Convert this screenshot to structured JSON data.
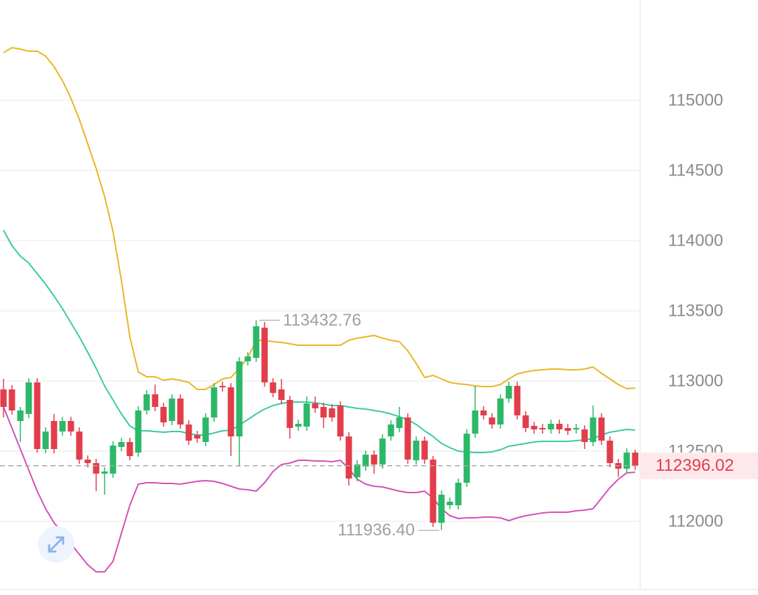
{
  "chart_data": {
    "type": "candlestick",
    "ylim": [
      111515,
      115715
    ],
    "yticks": [
      112000,
      112500,
      113000,
      113500,
      114000,
      114500,
      115000
    ],
    "grid": true,
    "up_color": "#2cb868",
    "down_color": "#e23d4b",
    "open": [
      112940,
      112940,
      112715,
      112765,
      112990,
      112515,
      112715,
      112640,
      112715,
      112640,
      112440,
      112415,
      112340,
      112340,
      112530,
      112565,
      112490,
      112790,
      112905,
      112815,
      112715,
      112875,
      112690,
      112615,
      112565,
      112740,
      112965,
      112955,
      112605,
      113140,
      113165,
      113380,
      112990,
      112940,
      112865,
      112675,
      112675,
      112840,
      112815,
      112805,
      112825,
      112605,
      112315,
      112390,
      112475,
      112405,
      112605,
      112665,
      112740,
      112435,
      112575,
      112440,
      111990,
      112115,
      112115,
      112275,
      112625,
      112790,
      112740,
      112690,
      112875,
      112965,
      112755,
      112680,
      112665,
      112655,
      112695,
      112665,
      112655,
      112655,
      112565,
      112740,
      112575,
      112415,
      112375,
      112490
    ],
    "high": [
      113015,
      112970,
      112815,
      113020,
      113020,
      112670,
      112765,
      112745,
      112745,
      112670,
      112470,
      112445,
      112385,
      112570,
      112595,
      112595,
      112820,
      112935,
      112975,
      112845,
      112905,
      112905,
      112720,
      112645,
      112770,
      112985,
      112995,
      112985,
      113170,
      113205,
      113432.76,
      113420,
      113020,
      113015,
      112895,
      112725,
      112890,
      112890,
      112845,
      112835,
      112855,
      112635,
      112435,
      112505,
      112505,
      112620,
      112720,
      112815,
      112770,
      112605,
      112605,
      112465,
      112220,
      112170,
      112305,
      112655,
      112965,
      112820,
      112770,
      112905,
      112995,
      112995,
      112785,
      112710,
      112695,
      112725,
      112725,
      112695,
      112695,
      112685,
      112825,
      112770,
      112605,
      112445,
      112520,
      112510
    ],
    "low": [
      112740,
      112760,
      112565,
      112735,
      112490,
      112485,
      112485,
      112610,
      112610,
      112410,
      112385,
      112215,
      112190,
      112310,
      112500,
      112435,
      112460,
      112760,
      112785,
      112675,
      112685,
      112660,
      112545,
      112560,
      112535,
      112710,
      112925,
      112465,
      112390,
      113110,
      113135,
      112960,
      112885,
      112835,
      112590,
      112645,
      112645,
      112775,
      112665,
      112710,
      112575,
      112255,
      112285,
      112360,
      112340,
      112375,
      112575,
      112635,
      112410,
      112405,
      112410,
      111960,
      111936.4,
      112085,
      112085,
      112245,
      112595,
      112725,
      112660,
      112660,
      112845,
      112725,
      112635,
      112625,
      112625,
      112625,
      112625,
      112615,
      112625,
      112515,
      112535,
      112545,
      112385,
      112315,
      112345,
      112365
    ],
    "close": [
      112815,
      112790,
      112790,
      112990,
      112515,
      112640,
      112515,
      112715,
      112640,
      112440,
      112415,
      112340,
      112355,
      112540,
      112565,
      112465,
      112790,
      112905,
      112815,
      112705,
      112875,
      112690,
      112575,
      112590,
      112740,
      112955,
      112955,
      112605,
      113140,
      113175,
      113390,
      112990,
      112915,
      112865,
      112665,
      112695,
      112840,
      112805,
      112740,
      112740,
      112605,
      112305,
      112405,
      112475,
      112405,
      112590,
      112690,
      112740,
      112440,
      112575,
      112440,
      111990,
      112190,
      112140,
      112275,
      112625,
      112790,
      112755,
      112690,
      112875,
      112965,
      112755,
      112665,
      112655,
      112655,
      112695,
      112655,
      112645,
      112665,
      112565,
      112740,
      112575,
      112415,
      112375,
      112490,
      112396.02
    ],
    "lines": [
      {
        "color": "#e8b625",
        "values": [
          115340,
          115375,
          115365,
          115350,
          115350,
          115315,
          115240,
          115140,
          115015,
          114865,
          114690,
          114515,
          114315,
          114065,
          113715,
          113315,
          113065,
          113030,
          113030,
          113005,
          113015,
          113005,
          112990,
          112940,
          112940,
          112975,
          113015,
          113025,
          113090,
          113165,
          113290,
          113290,
          113280,
          113275,
          113265,
          113255,
          113255,
          113255,
          113255,
          113255,
          113255,
          113290,
          113305,
          113315,
          113325,
          113305,
          113290,
          113280,
          113215,
          113125,
          113025,
          113040,
          113015,
          112990,
          112980,
          112975,
          112965,
          112960,
          112960,
          112975,
          113015,
          113050,
          113065,
          113075,
          113080,
          113085,
          113085,
          113080,
          113080,
          113085,
          113100,
          113055,
          113015,
          112975,
          112945,
          112950
        ]
      },
      {
        "color": "#3cc9a6",
        "values": [
          114075,
          113965,
          113890,
          113840,
          113765,
          113690,
          113605,
          113515,
          113415,
          113315,
          113205,
          113090,
          112965,
          112865,
          112765,
          112680,
          112645,
          112645,
          112640,
          112635,
          112640,
          112640,
          112625,
          112615,
          112615,
          112630,
          112645,
          112650,
          112685,
          112725,
          112765,
          112800,
          112825,
          112840,
          112850,
          112850,
          112850,
          112845,
          112835,
          112825,
          112825,
          112815,
          112805,
          112800,
          112790,
          112780,
          112765,
          112745,
          112725,
          112690,
          112645,
          112605,
          112555,
          112525,
          112500,
          112495,
          112490,
          112490,
          112495,
          112510,
          112535,
          112545,
          112555,
          112565,
          112570,
          112570,
          112570,
          112570,
          112575,
          112580,
          112590,
          112615,
          112635,
          112645,
          112655,
          112650
        ]
      },
      {
        "color": "#d550b6",
        "values": [
          112815,
          112665,
          112515,
          112365,
          112215,
          112090,
          111990,
          111915,
          111840,
          111765,
          111690,
          111640,
          111640,
          111715,
          111915,
          112115,
          112265,
          112275,
          112275,
          112270,
          112270,
          112265,
          112275,
          112285,
          112290,
          112285,
          112270,
          112250,
          112230,
          112225,
          112215,
          112275,
          112355,
          112405,
          112415,
          112435,
          112435,
          112430,
          112430,
          112425,
          112435,
          112375,
          112300,
          112265,
          112250,
          112245,
          112230,
          112215,
          112205,
          112205,
          112215,
          112165,
          112090,
          112040,
          112020,
          112025,
          112025,
          112030,
          112030,
          112025,
          112005,
          112025,
          112040,
          112050,
          112060,
          112065,
          112065,
          112065,
          112075,
          112080,
          112090,
          112165,
          112240,
          112300,
          112345,
          112350
        ]
      }
    ],
    "annotations": [
      {
        "value": 113432.76,
        "text": "113432.76"
      },
      {
        "value": 111936.4,
        "text": "111936.40"
      }
    ],
    "last_price": 112396.02
  }
}
